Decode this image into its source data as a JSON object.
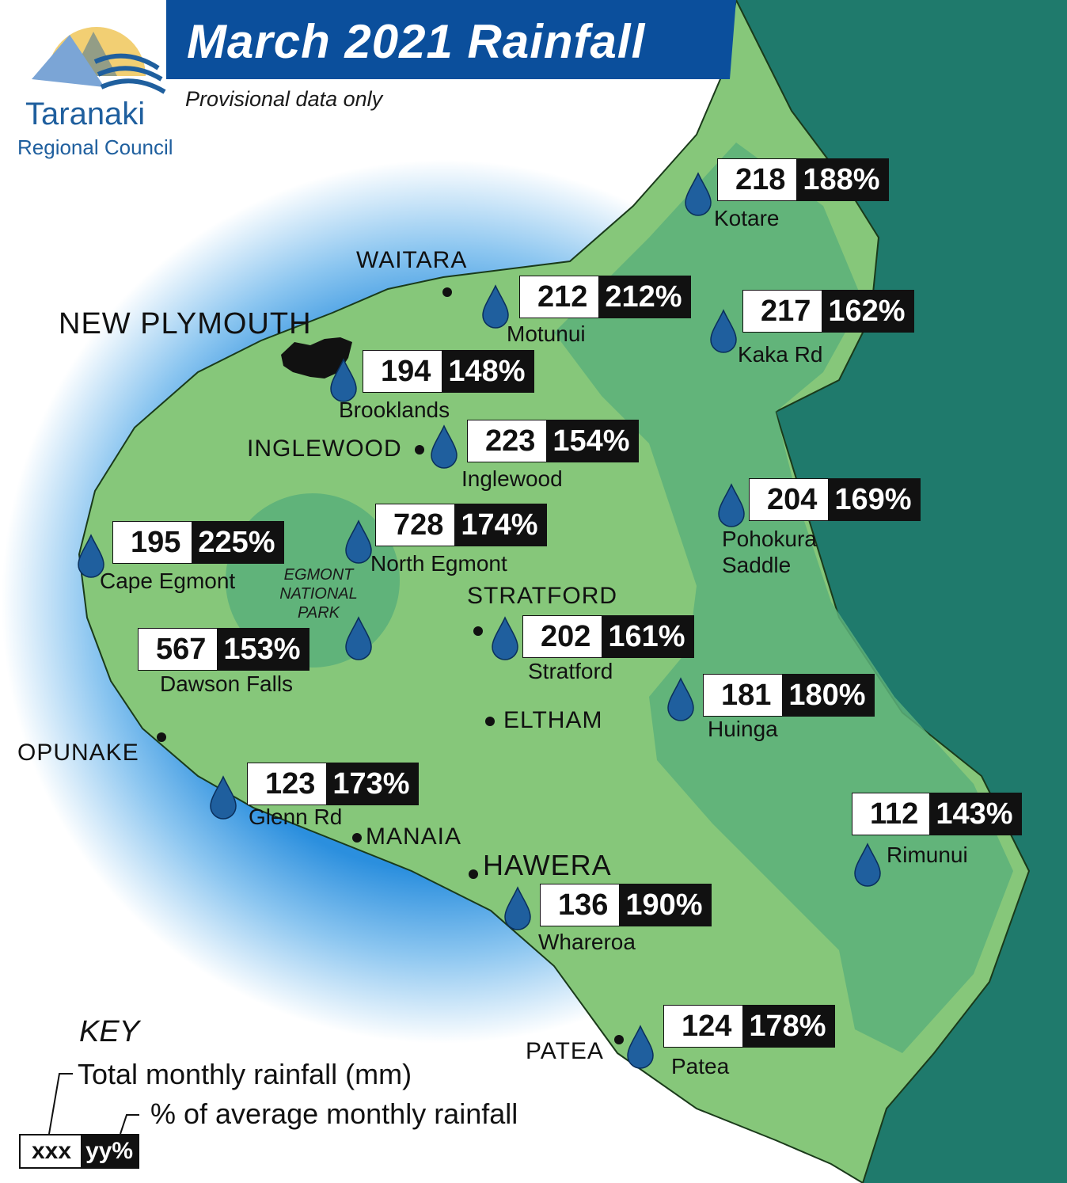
{
  "header": {
    "title": "March 2021 Rainfall",
    "subtitle": "Provisional data only",
    "banner_color": "#0b4f9c"
  },
  "logo": {
    "line1": "Taranaki",
    "line2": "Regional Council",
    "text_color": "#1f5f9e"
  },
  "colors": {
    "land": "#86c77a",
    "land_dark": "#5cb07a",
    "sea_east": "#1f7a6c",
    "sea_west": "#2b8fde",
    "urban": "#111111"
  },
  "towns": {
    "waitara": "WAITARA",
    "new_plymouth": "NEW PLYMOUTH",
    "inglewood": "INGLEWOOD",
    "stratford": "STRATFORD",
    "eltham": "ELTHAM",
    "opunake": "OPUNAKE",
    "manaia": "MANAIA",
    "hawera": "HAWERA",
    "patea": "PATEA"
  },
  "park": {
    "line1": "EGMONT",
    "line2": "NATIONAL",
    "line3": "PARK"
  },
  "stations": {
    "kotare": {
      "name": "Kotare",
      "mm": "218",
      "pct": "188%"
    },
    "motunui": {
      "name": "Motunui",
      "mm": "212",
      "pct": "212%"
    },
    "kaka_rd": {
      "name": "Kaka Rd",
      "mm": "217",
      "pct": "162%"
    },
    "brooklands": {
      "name": "Brooklands",
      "mm": "194",
      "pct": "148%"
    },
    "inglewood": {
      "name": "Inglewood",
      "mm": "223",
      "pct": "154%"
    },
    "pohokura": {
      "name1": "Pohokura",
      "name2": "Saddle",
      "mm": "204",
      "pct": "169%"
    },
    "north_egmont": {
      "name": "North Egmont",
      "mm": "728",
      "pct": "174%"
    },
    "cape_egmont": {
      "name": "Cape Egmont",
      "mm": "195",
      "pct": "225%"
    },
    "dawson_falls": {
      "name": "Dawson Falls",
      "mm": "567",
      "pct": "153%"
    },
    "stratford": {
      "name": "Stratford",
      "mm": "202",
      "pct": "161%"
    },
    "huinga": {
      "name": "Huinga",
      "mm": "181",
      "pct": "180%"
    },
    "glenn_rd": {
      "name": "Glenn Rd",
      "mm": "123",
      "pct": "173%"
    },
    "rimunui": {
      "name": "Rimunui",
      "mm": "112",
      "pct": "143%"
    },
    "whareroa": {
      "name": "Whareroa",
      "mm": "136",
      "pct": "190%"
    },
    "patea": {
      "name": "Patea",
      "mm": "124",
      "pct": "178%"
    }
  },
  "key": {
    "title": "KEY",
    "line1": "Total monthly rainfall (mm)",
    "line2": "% of average monthly rainfall",
    "sample_mm": "xxx",
    "sample_pct": "yy%"
  }
}
